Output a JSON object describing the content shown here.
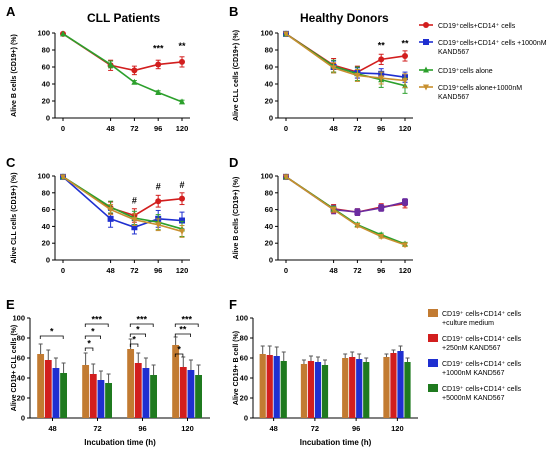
{
  "figure": {
    "letters": [
      "A",
      "B",
      "C",
      "D",
      "E",
      "F"
    ],
    "titles": {
      "A": "CLL Patients",
      "B": "Healthy Donors"
    }
  },
  "legend_top": [
    {
      "text": "CD19⁺cells+CD14⁺ cells",
      "color": "#d21e1e",
      "marker": "circle"
    },
    {
      "text": "CD19⁺cells+CD14⁺ cells +1000nM KAND567",
      "color": "#1f2fd0",
      "marker": "square"
    },
    {
      "text": "CD19⁺cells alone",
      "color": "#2ca02c",
      "marker": "triangle"
    },
    {
      "text": "CD19⁺cells alone+1000nM KAND567",
      "color": "#c8902f",
      "marker": "tri-down"
    }
  ],
  "legend_bottom": [
    {
      "text": "CD19⁺ cells+CD14⁺ cells +culture medium",
      "color": "#c27b32"
    },
    {
      "text": "CD19⁺ cells+CD14⁺ cells +250nM KAND567",
      "color": "#d21e1e"
    },
    {
      "text": "CD19⁺ cells+CD14⁺ cells +1000nM KAND567",
      "color": "#1f2fd0"
    },
    {
      "text": "CD19⁺ cells+CD14⁺ cells +5000nM KAND567",
      "color": "#1f7a1f"
    }
  ],
  "chart_data": [
    {
      "panel": "A",
      "type": "line",
      "title": "CLL Patients",
      "xlabel": "",
      "ylabel": "Alive B cells (CD19+) (%)",
      "x": [
        0,
        48,
        72,
        96,
        120
      ],
      "ylim": [
        0,
        100
      ],
      "series": [
        {
          "name": "CD19⁺cells+CD14⁺ cells",
          "values": [
            99,
            62,
            56,
            63,
            66
          ],
          "err": [
            0,
            6,
            5,
            5,
            6
          ],
          "color": "#d21e1e",
          "marker": "circle"
        },
        {
          "name": "CD19⁺cells alone",
          "values": [
            99,
            63,
            42,
            30,
            19
          ],
          "err": [
            0,
            4,
            2,
            2,
            2
          ],
          "color": "#2ca02c",
          "marker": "triangle"
        }
      ],
      "annotations": [
        {
          "x": 96,
          "text": "***",
          "y": 78
        },
        {
          "x": 120,
          "text": "**",
          "y": 81
        }
      ]
    },
    {
      "panel": "B",
      "type": "line",
      "title": "Healthy Donors",
      "xlabel": "",
      "ylabel": "Alive CLL cells (CD19+) (%)",
      "x": [
        0,
        48,
        72,
        96,
        120
      ],
      "ylim": [
        0,
        100
      ],
      "series": [
        {
          "name": "CD19⁺cells+CD14⁺ cells",
          "values": [
            99,
            62,
            54,
            69,
            73
          ],
          "err": [
            0,
            8,
            7,
            6,
            6
          ],
          "color": "#d21e1e",
          "marker": "circle"
        },
        {
          "name": "CD19⁺cells+CD14⁺ cells +1000nM KAND567",
          "values": [
            99,
            60,
            53,
            52,
            48
          ],
          "err": [
            0,
            7,
            6,
            6,
            6
          ],
          "color": "#1f2fd0",
          "marker": "square"
        },
        {
          "name": "CD19⁺cells alone",
          "values": [
            99,
            61,
            52,
            45,
            38
          ],
          "err": [
            0,
            7,
            8,
            9,
            9
          ],
          "color": "#2ca02c",
          "marker": "triangle"
        },
        {
          "name": "CD19⁺cells alone+1000nM KAND567",
          "values": [
            99,
            59,
            50,
            47,
            44
          ],
          "err": [
            0,
            6,
            7,
            7,
            8
          ],
          "color": "#c8902f",
          "marker": "tri-down"
        }
      ],
      "annotations": [
        {
          "x": 96,
          "text": "**",
          "y": 82
        },
        {
          "x": 120,
          "text": "**",
          "y": 84
        }
      ]
    },
    {
      "panel": "C",
      "type": "line",
      "title": "",
      "xlabel": "",
      "ylabel": "Alive CLL cells (CD19+) (%)",
      "x": [
        0,
        48,
        72,
        96,
        120
      ],
      "ylim": [
        0,
        100
      ],
      "series": [
        {
          "name": "CD19⁺cells+CD14⁺ cells",
          "values": [
            99,
            62,
            53,
            70,
            73
          ],
          "err": [
            0,
            7,
            8,
            7,
            7
          ],
          "color": "#d21e1e",
          "marker": "circle"
        },
        {
          "name": "CD19⁺cells+CD14⁺ cells +1000nM KAND567",
          "values": [
            99,
            49,
            39,
            49,
            47
          ],
          "err": [
            0,
            10,
            8,
            10,
            10
          ],
          "color": "#1f2fd0",
          "marker": "square"
        },
        {
          "name": "CD19⁺cells alone",
          "values": [
            99,
            63,
            50,
            45,
            37
          ],
          "err": [
            0,
            7,
            8,
            9,
            9
          ],
          "color": "#2ca02c",
          "marker": "triangle"
        },
        {
          "name": "CD19⁺cells alone+1000nM KAND567",
          "values": [
            99,
            60,
            48,
            42,
            34
          ],
          "err": [
            0,
            6,
            7,
            7,
            7
          ],
          "color": "#c8902f",
          "marker": "tri-down"
        }
      ],
      "annotations": [
        {
          "x": 72,
          "text": "#",
          "y": 67
        },
        {
          "x": 96,
          "text": "#",
          "y": 84
        },
        {
          "x": 120,
          "text": "#",
          "y": 86
        }
      ]
    },
    {
      "panel": "D",
      "type": "line",
      "title": "",
      "xlabel": "",
      "ylabel": "Alive B cells (CD19+) (%)",
      "x": [
        0,
        48,
        72,
        96,
        120
      ],
      "ylim": [
        0,
        100
      ],
      "series": [
        {
          "name": "CD19⁺cells+CD14⁺ cells",
          "values": [
            99,
            61,
            57,
            63,
            67
          ],
          "err": [
            0,
            5,
            4,
            4,
            5
          ],
          "color": "#d21e1e",
          "marker": "circle"
        },
        {
          "name": "CD19⁺cells+CD14⁺ cells +1000nM KAND567",
          "values": [
            99,
            60,
            57,
            62,
            69
          ],
          "err": [
            0,
            5,
            4,
            4,
            4
          ],
          "color": "#6a2ca0",
          "marker": "square"
        },
        {
          "name": "CD19⁺cells alone",
          "values": [
            99,
            61,
            42,
            30,
            19
          ],
          "err": [
            0,
            3,
            2,
            2,
            2
          ],
          "color": "#2ca02c",
          "marker": "triangle"
        },
        {
          "name": "CD19⁺cells alone+1000nM KAND567",
          "values": [
            99,
            60,
            41,
            28,
            18
          ],
          "err": [
            0,
            3,
            2,
            2,
            2
          ],
          "color": "#c8902f",
          "marker": "tri-down"
        }
      ],
      "annotations": []
    },
    {
      "panel": "E",
      "type": "bar",
      "title": "",
      "xlabel": "Incubation time (h)",
      "ylabel": "Alive CD19+ CLL cells (%)",
      "categories": [
        "48",
        "72",
        "96",
        "120"
      ],
      "ylim": [
        0,
        100
      ],
      "series": [
        {
          "name": "CD19⁺ cells+CD14⁺ cells +culture medium",
          "values": [
            64,
            53,
            69,
            73
          ],
          "err": [
            10,
            12,
            10,
            8
          ],
          "color": "#c27b32"
        },
        {
          "name": "CD19⁺ cells+CD14⁺ cells +250nM KAND567",
          "values": [
            58,
            44,
            55,
            51
          ],
          "err": [
            10,
            10,
            10,
            10
          ],
          "color": "#d21e1e"
        },
        {
          "name": "CD19⁺ cells+CD14⁺ cells +1000nM KAND567",
          "values": [
            50,
            38,
            50,
            48
          ],
          "err": [
            10,
            9,
            10,
            10
          ],
          "color": "#1f2fd0"
        },
        {
          "name": "CD19⁺ cells+CD14⁺ cells +5000nM KAND567",
          "values": [
            45,
            35,
            43,
            43
          ],
          "err": [
            10,
            9,
            10,
            10
          ],
          "color": "#1f7a1f"
        }
      ],
      "significance": [
        {
          "group": 0,
          "from": 0,
          "to": 3,
          "y": 82,
          "text": "*"
        },
        {
          "group": 1,
          "from": 0,
          "to": 3,
          "y": 94,
          "text": "***"
        },
        {
          "group": 1,
          "from": 0,
          "to": 2,
          "y": 82,
          "text": "*"
        },
        {
          "group": 1,
          "from": 0,
          "to": 1,
          "y": 70,
          "text": "*"
        },
        {
          "group": 2,
          "from": 0,
          "to": 3,
          "y": 94,
          "text": "***"
        },
        {
          "group": 2,
          "from": 0,
          "to": 2,
          "y": 84,
          "text": "*"
        },
        {
          "group": 2,
          "from": 0,
          "to": 1,
          "y": 74,
          "text": "*"
        },
        {
          "group": 3,
          "from": 0,
          "to": 3,
          "y": 94,
          "text": "***"
        },
        {
          "group": 3,
          "from": 0,
          "to": 2,
          "y": 84,
          "text": "**"
        },
        {
          "group": 3,
          "from": 0,
          "to": 1,
          "y": 64,
          "text": "*"
        }
      ]
    },
    {
      "panel": "F",
      "type": "bar",
      "title": "",
      "xlabel": "Incubation time (h)",
      "ylabel": "Alive CD19+ B cell (%)",
      "categories": [
        "48",
        "72",
        "96",
        "120"
      ],
      "ylim": [
        0,
        100
      ],
      "series": [
        {
          "name": "CD19⁺ cells+CD14⁺ cells +culture medium",
          "values": [
            64,
            54,
            60,
            61
          ],
          "err": [
            8,
            4,
            4,
            3
          ],
          "color": "#c27b32"
        },
        {
          "name": "CD19⁺ cells+CD14⁺ cells +250nM KAND567",
          "values": [
            63,
            57,
            61,
            65
          ],
          "err": [
            9,
            5,
            5,
            3
          ],
          "color": "#d21e1e"
        },
        {
          "name": "CD19⁺ cells+CD14⁺ cells +1000nM KAND567",
          "values": [
            62,
            56,
            59,
            67
          ],
          "err": [
            9,
            5,
            5,
            5
          ],
          "color": "#1f2fd0"
        },
        {
          "name": "CD19⁺ cells+CD14⁺ cells +5000nM KAND567",
          "values": [
            57,
            53,
            56,
            56
          ],
          "err": [
            9,
            5,
            4,
            4
          ],
          "color": "#1f7a1f"
        }
      ],
      "significance": []
    }
  ]
}
